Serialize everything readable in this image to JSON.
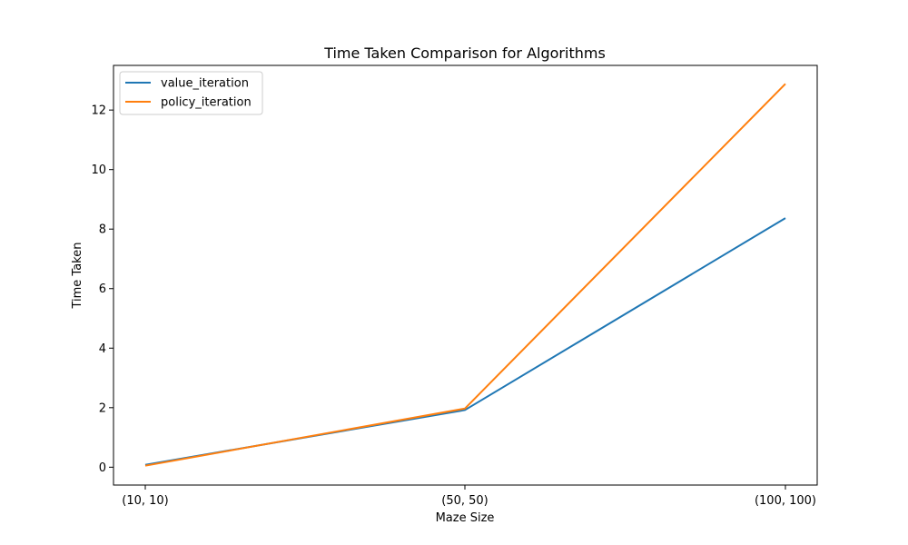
{
  "chart_data": {
    "type": "line",
    "title": "Time Taken Comparison for Algorithms",
    "xlabel": "Maze Size",
    "ylabel": "Time Taken",
    "categories": [
      "(10, 10)",
      "(50, 50)",
      "(100, 100)"
    ],
    "yticks": [
      0,
      2,
      4,
      6,
      8,
      10,
      12
    ],
    "ylim": [
      -0.6,
      13.5
    ],
    "grid": false,
    "legend_position": "top-left",
    "series": [
      {
        "name": "value_iteration",
        "color": "#1f77b4",
        "values": [
          0.08,
          1.92,
          8.37
        ]
      },
      {
        "name": "policy_iteration",
        "color": "#ff7f0e",
        "values": [
          0.05,
          1.97,
          12.88
        ]
      }
    ]
  }
}
